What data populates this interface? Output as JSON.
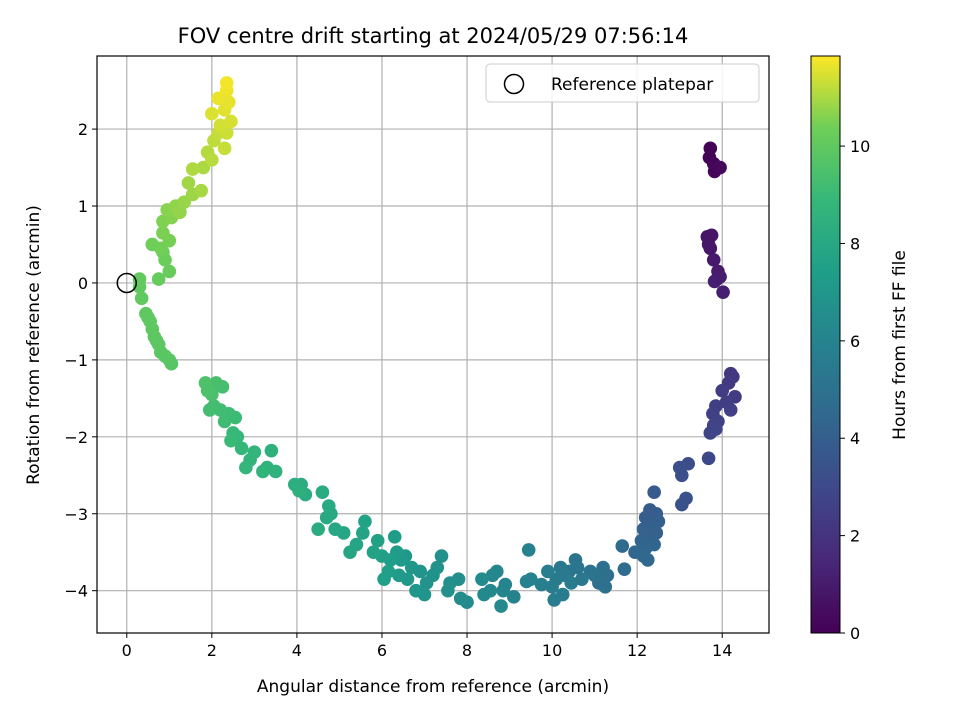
{
  "chart_data": {
    "type": "scatter",
    "title": "FOV centre drift starting at 2024/05/29 07:56:14",
    "xlabel": "Angular distance from reference (arcmin)",
    "ylabel": "Rotation from reference (arcmin)",
    "xlim": [
      -0.7,
      15.1
    ],
    "ylim": [
      -4.55,
      2.95
    ],
    "xticks": [
      0,
      2,
      4,
      6,
      8,
      10,
      12,
      14
    ],
    "yticks": [
      -4,
      -3,
      -2,
      -1,
      0,
      1,
      2
    ],
    "grid": true,
    "legend": {
      "placement": "top-right",
      "entries": [
        "Reference platepar"
      ]
    },
    "reference_point": {
      "x": 0,
      "y": 0
    },
    "colorbar": {
      "label": "Hours from first FF file",
      "range": [
        0,
        11.85
      ],
      "ticks": [
        0,
        2,
        4,
        6,
        8,
        10
      ],
      "colormap": "viridis"
    },
    "points": [
      [
        13.72,
        1.75,
        0.05
      ],
      [
        13.7,
        1.63,
        0.1
      ],
      [
        13.8,
        1.55,
        0.15
      ],
      [
        13.82,
        1.45,
        0.2
      ],
      [
        13.95,
        1.5,
        0.25
      ],
      [
        13.65,
        0.6,
        0.7
      ],
      [
        13.75,
        0.62,
        0.75
      ],
      [
        13.68,
        0.5,
        0.8
      ],
      [
        13.72,
        0.45,
        0.85
      ],
      [
        13.8,
        0.3,
        0.9
      ],
      [
        13.9,
        0.15,
        0.95
      ],
      [
        13.88,
        0.05,
        1.0
      ],
      [
        13.95,
        0.08,
        1.05
      ],
      [
        13.82,
        0.02,
        1.1
      ],
      [
        14.02,
        -0.12,
        1.15
      ],
      [
        14.2,
        -1.18,
        2.2
      ],
      [
        14.25,
        -1.22,
        2.25
      ],
      [
        14.15,
        -1.3,
        2.3
      ],
      [
        14.3,
        -1.48,
        2.35
      ],
      [
        14.0,
        -1.4,
        2.4
      ],
      [
        14.1,
        -1.55,
        2.45
      ],
      [
        13.85,
        -1.6,
        2.5
      ],
      [
        14.2,
        -1.65,
        2.55
      ],
      [
        13.78,
        -1.7,
        2.6
      ],
      [
        13.9,
        -1.8,
        2.65
      ],
      [
        13.8,
        -1.85,
        2.7
      ],
      [
        13.72,
        -1.95,
        2.75
      ],
      [
        13.85,
        -1.9,
        2.8
      ],
      [
        13.68,
        -2.28,
        2.9
      ],
      [
        13.2,
        -2.35,
        3.2
      ],
      [
        13.0,
        -2.4,
        3.25
      ],
      [
        13.05,
        -2.5,
        3.3
      ],
      [
        13.15,
        -2.8,
        3.35
      ],
      [
        13.05,
        -2.88,
        3.4
      ],
      [
        12.4,
        -2.72,
        3.8
      ],
      [
        12.3,
        -2.95,
        3.85
      ],
      [
        12.45,
        -3.0,
        3.9
      ],
      [
        12.2,
        -3.05,
        3.95
      ],
      [
        12.5,
        -3.1,
        4.0
      ],
      [
        12.35,
        -3.15,
        4.05
      ],
      [
        12.15,
        -3.2,
        4.1
      ],
      [
        12.45,
        -3.25,
        4.15
      ],
      [
        12.25,
        -3.3,
        4.2
      ],
      [
        12.1,
        -3.35,
        4.25
      ],
      [
        12.4,
        -3.4,
        4.3
      ],
      [
        12.2,
        -3.45,
        4.35
      ],
      [
        11.95,
        -3.5,
        4.4
      ],
      [
        12.15,
        -3.55,
        4.45
      ],
      [
        12.25,
        -3.6,
        4.5
      ],
      [
        11.65,
        -3.42,
        4.6
      ],
      [
        11.7,
        -3.72,
        4.65
      ],
      [
        11.2,
        -3.7,
        4.8
      ],
      [
        11.3,
        -3.8,
        4.85
      ],
      [
        11.1,
        -3.9,
        4.9
      ],
      [
        11.25,
        -3.95,
        4.95
      ],
      [
        10.9,
        -3.75,
        5.0
      ],
      [
        11.0,
        -3.8,
        5.05
      ],
      [
        10.55,
        -3.6,
        5.15
      ],
      [
        10.6,
        -3.7,
        5.2
      ],
      [
        10.4,
        -3.75,
        5.25
      ],
      [
        10.7,
        -3.85,
        5.3
      ],
      [
        10.2,
        -3.7,
        5.35
      ],
      [
        10.3,
        -3.8,
        5.4
      ],
      [
        10.1,
        -3.85,
        5.45
      ],
      [
        10.45,
        -3.9,
        5.5
      ],
      [
        10.0,
        -3.95,
        5.55
      ],
      [
        10.25,
        -4.05,
        5.6
      ],
      [
        10.05,
        -4.12,
        5.65
      ],
      [
        9.9,
        -3.75,
        5.7
      ],
      [
        9.75,
        -3.92,
        5.75
      ],
      [
        9.45,
        -3.47,
        5.85
      ],
      [
        9.5,
        -3.85,
        5.9
      ],
      [
        9.4,
        -3.88,
        5.95
      ],
      [
        9.1,
        -4.08,
        6.0
      ],
      [
        8.9,
        -3.92,
        6.05
      ],
      [
        8.85,
        -4.0,
        6.1
      ],
      [
        8.7,
        -3.75,
        6.15
      ],
      [
        8.6,
        -3.8,
        6.2
      ],
      [
        8.55,
        -4.0,
        6.25
      ],
      [
        8.4,
        -4.05,
        6.3
      ],
      [
        8.8,
        -4.2,
        6.35
      ],
      [
        8.35,
        -3.85,
        6.4
      ],
      [
        8.0,
        -4.15,
        6.45
      ],
      [
        7.85,
        -4.1,
        6.5
      ],
      [
        7.8,
        -3.85,
        6.55
      ],
      [
        7.6,
        -3.9,
        6.6
      ],
      [
        7.55,
        -4.0,
        6.65
      ],
      [
        7.4,
        -3.55,
        6.7
      ],
      [
        7.3,
        -3.7,
        6.75
      ],
      [
        7.2,
        -3.8,
        6.8
      ],
      [
        7.05,
        -3.9,
        6.85
      ],
      [
        7.0,
        -4.05,
        6.9
      ],
      [
        6.9,
        -3.75,
        6.95
      ],
      [
        6.8,
        -4.0,
        7.0
      ],
      [
        6.7,
        -3.7,
        7.05
      ],
      [
        6.6,
        -3.85,
        7.1
      ],
      [
        6.55,
        -3.55,
        7.15
      ],
      [
        6.45,
        -3.6,
        7.2
      ],
      [
        6.4,
        -3.8,
        7.25
      ],
      [
        6.35,
        -3.5,
        7.3
      ],
      [
        6.3,
        -3.3,
        7.35
      ],
      [
        6.2,
        -3.6,
        7.4
      ],
      [
        6.15,
        -3.75,
        7.45
      ],
      [
        6.05,
        -3.85,
        7.5
      ],
      [
        6.0,
        -3.55,
        7.55
      ],
      [
        5.9,
        -3.35,
        7.6
      ],
      [
        5.8,
        -3.5,
        7.65
      ],
      [
        5.6,
        -3.1,
        7.7
      ],
      [
        5.55,
        -3.25,
        7.75
      ],
      [
        5.4,
        -3.4,
        7.8
      ],
      [
        5.25,
        -3.5,
        7.85
      ],
      [
        5.1,
        -3.25,
        7.9
      ],
      [
        4.9,
        -3.2,
        7.95
      ],
      [
        4.8,
        -3.0,
        8.0
      ],
      [
        4.7,
        -3.05,
        8.05
      ],
      [
        4.75,
        -2.9,
        8.1
      ],
      [
        4.6,
        -2.72,
        8.15
      ],
      [
        4.5,
        -3.2,
        8.2
      ],
      [
        4.2,
        -2.75,
        8.25
      ],
      [
        4.1,
        -2.62,
        8.3
      ],
      [
        3.95,
        -2.62,
        8.35
      ],
      [
        4.05,
        -2.7,
        8.4
      ],
      [
        3.4,
        -2.18,
        8.5
      ],
      [
        3.5,
        -2.45,
        8.55
      ],
      [
        3.3,
        -2.4,
        8.6
      ],
      [
        3.2,
        -2.45,
        8.65
      ],
      [
        3.0,
        -2.2,
        8.7
      ],
      [
        2.9,
        -2.3,
        8.75
      ],
      [
        2.8,
        -2.4,
        8.8
      ],
      [
        2.7,
        -2.15,
        8.85
      ],
      [
        2.6,
        -2.0,
        8.9
      ],
      [
        2.5,
        -1.95,
        8.95
      ],
      [
        2.45,
        -2.05,
        9.0
      ],
      [
        2.55,
        -1.75,
        9.05
      ],
      [
        2.4,
        -1.7,
        9.1
      ],
      [
        2.3,
        -1.8,
        9.15
      ],
      [
        2.2,
        -1.65,
        9.2
      ],
      [
        2.05,
        -1.6,
        9.25
      ],
      [
        1.95,
        -1.65,
        9.3
      ],
      [
        2.25,
        -1.35,
        9.35
      ],
      [
        2.1,
        -1.3,
        9.4
      ],
      [
        2.0,
        -1.45,
        9.45
      ],
      [
        1.9,
        -1.4,
        9.5
      ],
      [
        1.85,
        -1.3,
        9.55
      ],
      [
        1.05,
        -1.05,
        9.8
      ],
      [
        1.0,
        -1.0,
        9.82
      ],
      [
        0.9,
        -0.95,
        9.84
      ],
      [
        0.8,
        -0.9,
        9.86
      ],
      [
        0.75,
        -0.8,
        9.88
      ],
      [
        0.7,
        -0.75,
        9.9
      ],
      [
        0.65,
        -0.7,
        9.92
      ],
      [
        0.6,
        -0.6,
        9.94
      ],
      [
        0.55,
        -0.5,
        9.96
      ],
      [
        0.5,
        -0.45,
        9.98
      ],
      [
        0.45,
        -0.4,
        10.0
      ],
      [
        0.35,
        -0.2,
        10.02
      ],
      [
        0.3,
        -0.05,
        10.04
      ],
      [
        0.3,
        0.05,
        10.06
      ],
      [
        0.75,
        0.05,
        10.15
      ],
      [
        1.0,
        0.15,
        10.2
      ],
      [
        0.9,
        0.3,
        10.25
      ],
      [
        0.85,
        0.4,
        10.3
      ],
      [
        0.6,
        0.5,
        10.35
      ],
      [
        0.8,
        0.45,
        10.4
      ],
      [
        1.0,
        0.55,
        10.45
      ],
      [
        0.85,
        0.65,
        10.5
      ],
      [
        0.85,
        0.8,
        10.55
      ],
      [
        1.05,
        0.85,
        10.6
      ],
      [
        0.95,
        0.95,
        10.65
      ],
      [
        1.15,
        1.0,
        10.7
      ],
      [
        1.25,
        0.92,
        10.75
      ],
      [
        1.35,
        1.05,
        10.8
      ],
      [
        1.55,
        1.15,
        10.85
      ],
      [
        1.45,
        1.3,
        10.9
      ],
      [
        1.75,
        1.2,
        10.95
      ],
      [
        1.8,
        1.5,
        11.0
      ],
      [
        1.55,
        1.48,
        11.05
      ],
      [
        1.9,
        1.7,
        11.1
      ],
      [
        2.0,
        1.6,
        11.15
      ],
      [
        2.05,
        1.85,
        11.2
      ],
      [
        2.15,
        1.95,
        11.25
      ],
      [
        2.3,
        1.75,
        11.3
      ],
      [
        2.35,
        1.95,
        11.35
      ],
      [
        2.2,
        2.05,
        11.4
      ],
      [
        2.45,
        2.1,
        11.45
      ],
      [
        2.0,
        2.2,
        11.5
      ],
      [
        2.3,
        2.25,
        11.55
      ],
      [
        2.4,
        2.35,
        11.6
      ],
      [
        2.15,
        2.4,
        11.65
      ],
      [
        2.35,
        2.5,
        11.7
      ],
      [
        2.35,
        2.6,
        11.75
      ]
    ]
  }
}
